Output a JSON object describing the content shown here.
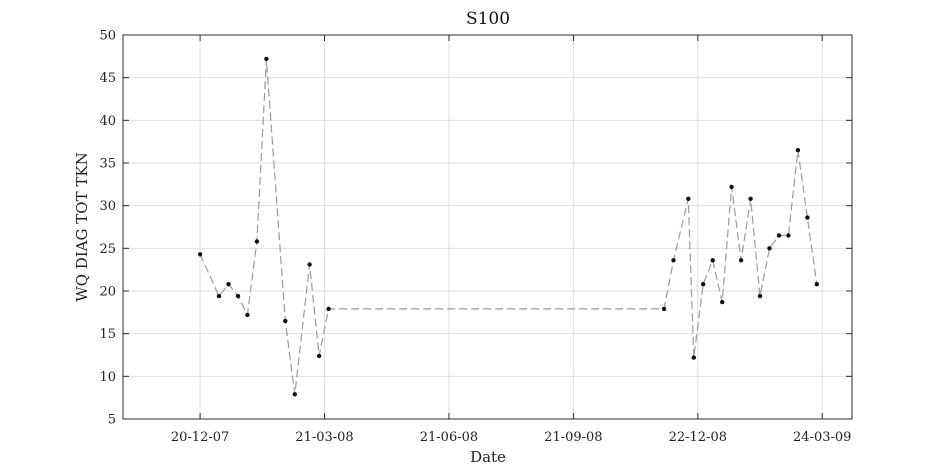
{
  "chart_data": {
    "type": "line",
    "title": "S100",
    "xlabel": "Date",
    "ylabel": "WQ DIAG TOT TKN",
    "xlim": [
      "2007-10-24",
      "2009-04-15"
    ],
    "ylim": [
      5,
      50
    ],
    "yticks": [
      5,
      10,
      15,
      20,
      25,
      30,
      35,
      40,
      45,
      50
    ],
    "xticks": [
      {
        "date": "2007-12-20",
        "label": "20-12-07"
      },
      {
        "date": "2008-03-21",
        "label": "21-03-08"
      },
      {
        "date": "2008-06-21",
        "label": "21-06-08"
      },
      {
        "date": "2008-09-21",
        "label": "21-09-08"
      },
      {
        "date": "2008-12-22",
        "label": "22-12-08"
      },
      {
        "date": "2009-03-24",
        "label": "24-03-09"
      }
    ],
    "grid": true,
    "series": [
      {
        "line_style": "dashed",
        "color": "#9a9a9a",
        "marker_color": "#111111",
        "points": [
          {
            "x": "2007-12-20",
            "y": 24.3
          },
          {
            "x": "2008-01-03",
            "y": 19.4
          },
          {
            "x": "2008-01-10",
            "y": 20.8
          },
          {
            "x": "2008-01-17",
            "y": 19.4
          },
          {
            "x": "2008-01-24",
            "y": 17.2
          },
          {
            "x": "2008-01-31",
            "y": 25.8
          },
          {
            "x": "2008-02-07",
            "y": 47.2
          },
          {
            "x": "2008-02-21",
            "y": 16.5
          },
          {
            "x": "2008-02-28",
            "y": 7.9
          },
          {
            "x": "2008-03-10",
            "y": 23.1
          },
          {
            "x": "2008-03-17",
            "y": 12.4
          },
          {
            "x": "2008-03-24",
            "y": 17.9
          },
          {
            "x": "2008-11-27",
            "y": 17.9
          },
          {
            "x": "2008-12-04",
            "y": 23.6
          },
          {
            "x": "2008-12-15",
            "y": 30.8
          },
          {
            "x": "2008-12-19",
            "y": 12.2
          },
          {
            "x": "2008-12-26",
            "y": 20.8
          },
          {
            "x": "2009-01-02",
            "y": 23.6
          },
          {
            "x": "2009-01-09",
            "y": 18.7
          },
          {
            "x": "2009-01-16",
            "y": 32.2
          },
          {
            "x": "2009-01-23",
            "y": 23.6
          },
          {
            "x": "2009-01-30",
            "y": 30.8
          },
          {
            "x": "2009-02-06",
            "y": 19.4
          },
          {
            "x": "2009-02-13",
            "y": 25.0
          },
          {
            "x": "2009-02-20",
            "y": 26.5
          },
          {
            "x": "2009-02-27",
            "y": 26.5
          },
          {
            "x": "2009-03-06",
            "y": 36.5
          },
          {
            "x": "2009-03-13",
            "y": 28.6
          },
          {
            "x": "2009-03-20",
            "y": 20.8
          }
        ]
      }
    ]
  }
}
